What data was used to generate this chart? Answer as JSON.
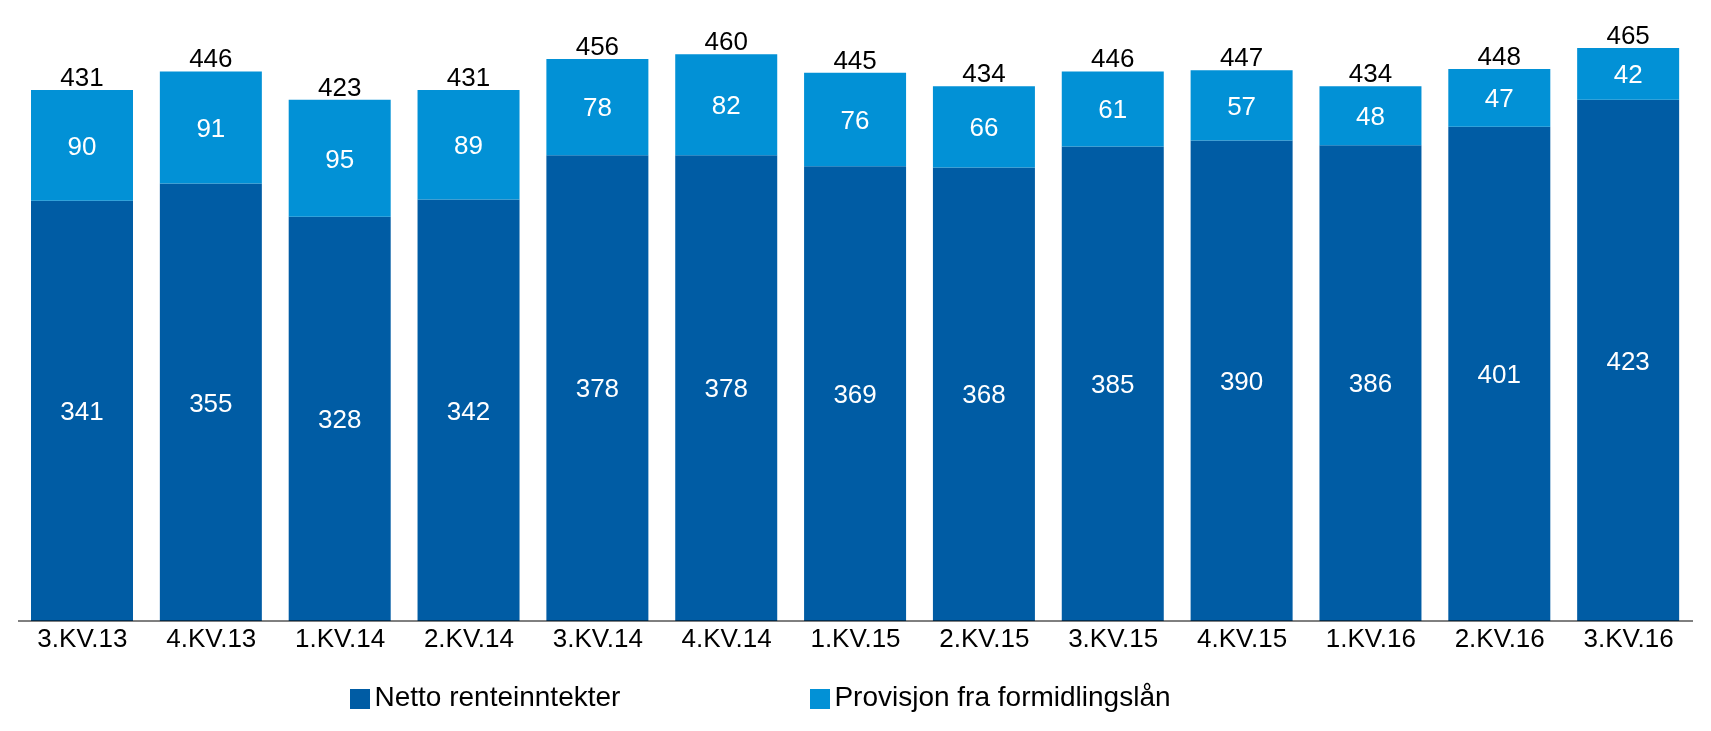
{
  "chart_data": {
    "type": "bar",
    "stacked": true,
    "categories": [
      "3.KV.13",
      "4.KV.13",
      "1.KV.14",
      "2.KV.14",
      "3.KV.14",
      "4.KV.14",
      "1.KV.15",
      "2.KV.15",
      "3.KV.15",
      "4.KV.15",
      "1.KV.16",
      "2.KV.16",
      "3.KV.16"
    ],
    "series": [
      {
        "name": "Netto renteinntekter",
        "color": "#005ca4",
        "values": [
          341,
          355,
          328,
          342,
          378,
          378,
          369,
          368,
          385,
          390,
          386,
          401,
          423
        ]
      },
      {
        "name": "Provisjon fra formidlingslån",
        "color": "#0291d6",
        "values": [
          90,
          91,
          95,
          89,
          78,
          82,
          76,
          66,
          61,
          57,
          48,
          47,
          42
        ]
      }
    ],
    "totals": [
      "431",
      "446",
      "423",
      "431",
      "456",
      "460",
      "445",
      "434",
      "446",
      "447",
      "434",
      "448",
      "465"
    ],
    "data_labels": true,
    "legend": "bottom",
    "grid": false
  }
}
